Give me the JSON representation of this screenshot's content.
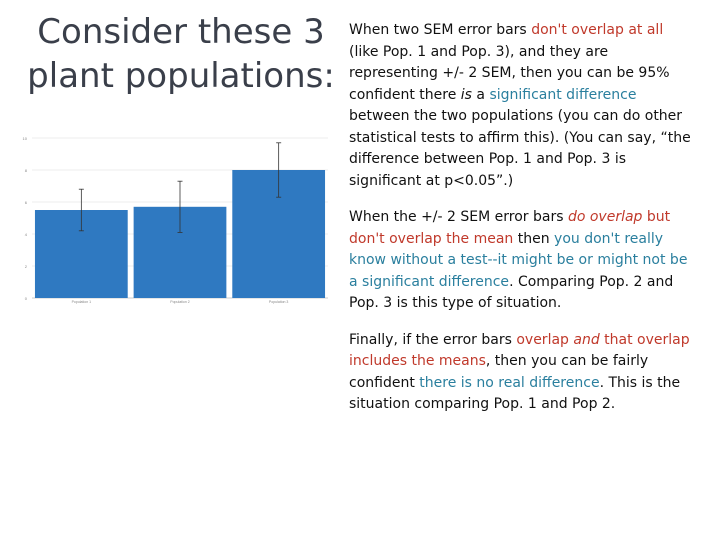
{
  "title": {
    "line1": "Consider these 3",
    "line2": "plant populations:"
  },
  "paragraphs": [
    {
      "segments": [
        {
          "text": "When two SEM error bars ",
          "style": "plain"
        },
        {
          "text": "don't overlap at all",
          "style": "red"
        },
        {
          "text": " (like Pop. 1 and Pop. 3), and they are representing +/- 2 SEM, then you can be 95% confident there ",
          "style": "plain"
        },
        {
          "text": "is",
          "style": "italic"
        },
        {
          "text": " a ",
          "style": "plain"
        },
        {
          "text": "significant difference",
          "style": "blue"
        },
        {
          "text": " between the two populations (you can do other statistical tests to affirm this). (You can say, “the difference between Pop. 1 and Pop. 3 is significant at p<0.05”.)",
          "style": "plain"
        }
      ]
    },
    {
      "segments": [
        {
          "text": "When the +/- 2 SEM error bars ",
          "style": "plain"
        },
        {
          "text": "do overlap",
          "style": "red-italic"
        },
        {
          "text": " ",
          "style": "plain"
        },
        {
          "text": "but don't overlap the mean",
          "style": "red"
        },
        {
          "text": " then ",
          "style": "plain"
        },
        {
          "text": "you don't really know without a test--it might be or might not be a significant difference",
          "style": "blue"
        },
        {
          "text": ". Comparing Pop. 2 and Pop. 3 is this type of situation.",
          "style": "plain"
        }
      ]
    },
    {
      "segments": [
        {
          "text": "Finally, if the error bars ",
          "style": "plain"
        },
        {
          "text": "overlap",
          "style": "red"
        },
        {
          "text": " ",
          "style": "plain"
        },
        {
          "text": "and",
          "style": "red-italic"
        },
        {
          "text": " ",
          "style": "plain"
        },
        {
          "text": "that overlap includes the means",
          "style": "red"
        },
        {
          "text": ", then you can be fairly confident ",
          "style": "plain"
        },
        {
          "text": "there is no real difference",
          "style": "blue"
        },
        {
          "text": ". This is the situation comparing Pop. 1 and Pop 2.",
          "style": "plain"
        }
      ]
    }
  ],
  "colors": {
    "red": "#c0392b",
    "blue": "#2a7f9e",
    "bar": "#2f79c1",
    "title": "#3a3f4a"
  },
  "chart_data": {
    "type": "bar",
    "categories": [
      "Population 1",
      "Population 2",
      "Population 3"
    ],
    "values": [
      5.5,
      5.7,
      8.0
    ],
    "error": [
      1.3,
      1.6,
      1.7
    ],
    "title": "",
    "xlabel": "",
    "ylabel": "",
    "ylim": [
      0,
      10
    ],
    "grid": true,
    "legend": "top-right"
  }
}
